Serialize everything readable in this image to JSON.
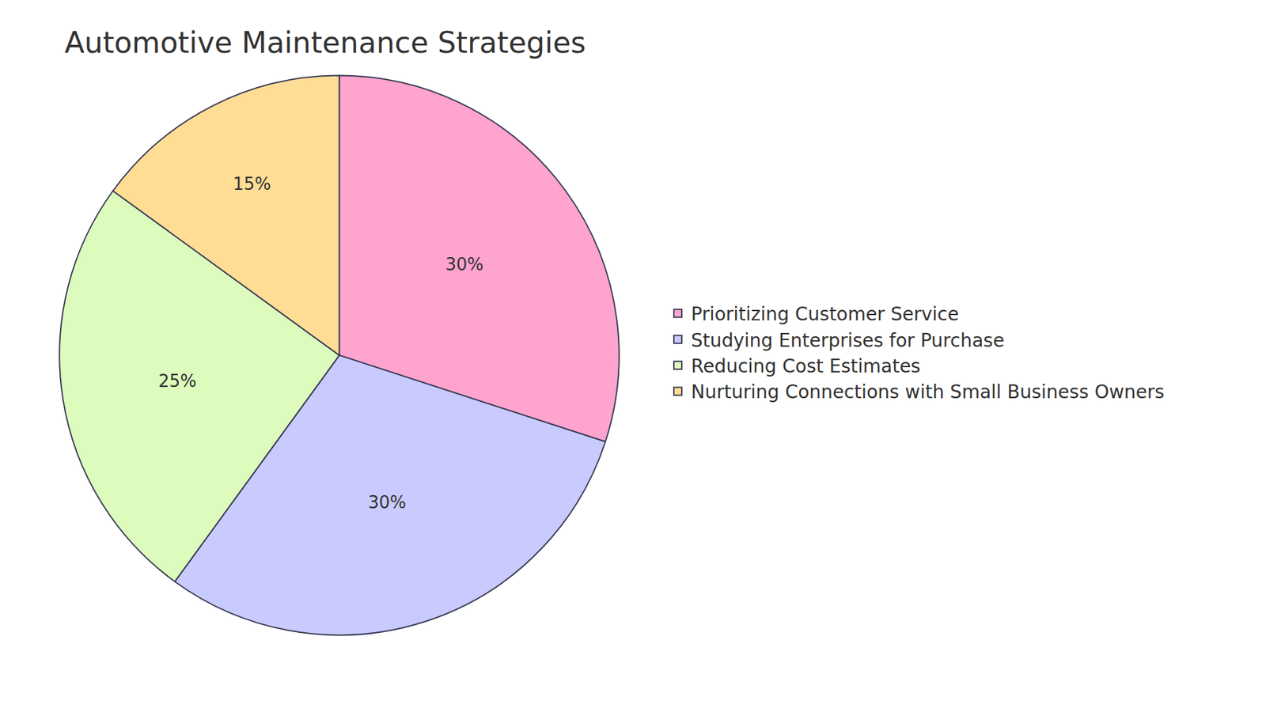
{
  "chart_data": {
    "type": "pie",
    "title": "Automotive Maintenance Strategies",
    "categories": [
      "Prioritizing Customer Service",
      "Studying Enterprises for Purchase",
      "Reducing Cost Estimates",
      "Nurturing Connections with Small Business Owners"
    ],
    "values": [
      30,
      30,
      25,
      15
    ],
    "value_labels": [
      "30%",
      "30%",
      "25%",
      "15%"
    ],
    "colors": [
      "#ffa3cf",
      "#c9cbff",
      "#dcfbbc",
      "#ffdd95"
    ],
    "data_labels": true,
    "legend": "right"
  }
}
